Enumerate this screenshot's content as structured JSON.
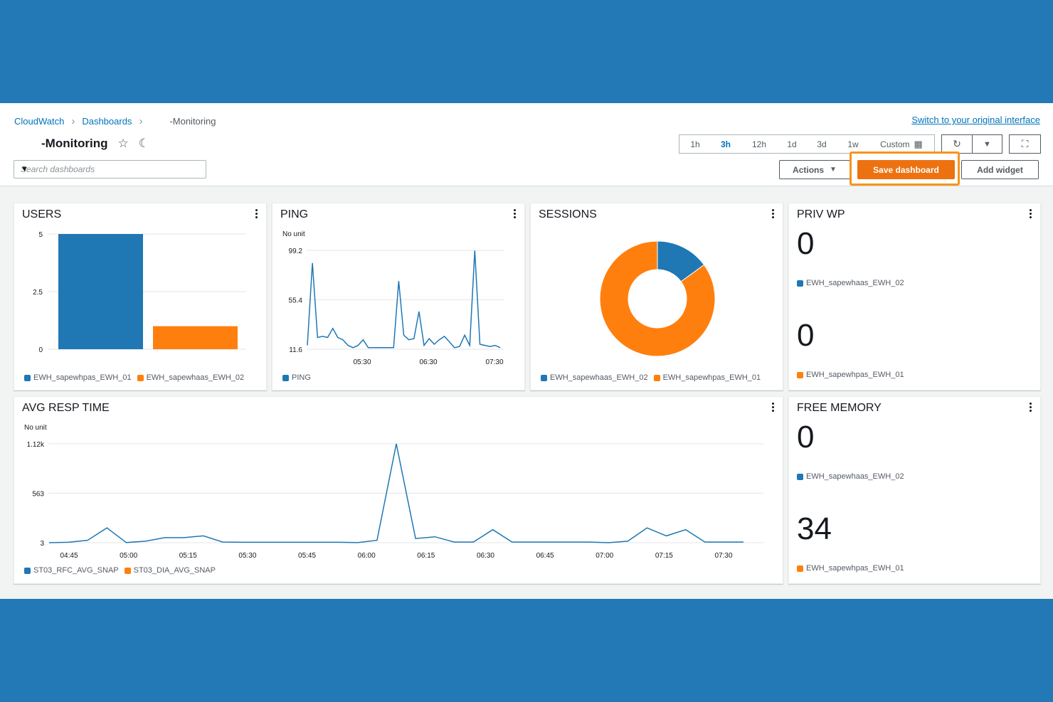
{
  "breadcrumb": {
    "cloudwatch": "CloudWatch",
    "dashboards": "Dashboards",
    "current": "-Monitoring"
  },
  "switch_link": "Switch to your original interface",
  "dashboard_title": "-Monitoring",
  "search": {
    "placeholder": "Search dashboards"
  },
  "time_ranges": [
    "1h",
    "3h",
    "12h",
    "1d",
    "3d",
    "1w"
  ],
  "time_active": "3h",
  "custom_label": "Custom",
  "buttons": {
    "actions": "Actions",
    "save": "Save dashboard",
    "add_widget": "Add widget"
  },
  "colors": {
    "blue": "#1f77b4",
    "orange": "#ff7f0e",
    "highlight": "#f7941d"
  },
  "widgets": {
    "users": {
      "title": "USERS",
      "legend": [
        "EWH_sapewhpas_EWH_01",
        "EWH_sapewhaas_EWH_02"
      ]
    },
    "ping": {
      "title": "PING",
      "unit": "No unit",
      "legend": [
        "PING"
      ]
    },
    "sessions": {
      "title": "SESSIONS",
      "legend": [
        "EWH_sapewhaas_EWH_02",
        "EWH_sapewhpas_EWH_01"
      ]
    },
    "privwp": {
      "title": "PRIV WP",
      "v1": "0",
      "l1": "EWH_sapewhaas_EWH_02",
      "v2": "0",
      "l2": "EWH_sapewhpas_EWH_01"
    },
    "avgresp": {
      "title": "AVG RESP TIME",
      "unit": "No unit",
      "legend": [
        "ST03_RFC_AVG_SNAP",
        "ST03_DIA_AVG_SNAP"
      ]
    },
    "freemem": {
      "title": "FREE MEMORY",
      "v1": "0",
      "l1": "EWH_sapewhaas_EWH_02",
      "v2": "34",
      "l2": "EWH_sapewhpas_EWH_01"
    }
  },
  "chart_data": [
    {
      "type": "bar",
      "title": "USERS",
      "categories": [
        "EWH_sapewhpas_EWH_01",
        "EWH_sapewhaas_EWH_02"
      ],
      "values": [
        5,
        1
      ],
      "yticks": [
        "5",
        "2.5",
        "0"
      ],
      "ylim": [
        0,
        5
      ]
    },
    {
      "type": "line",
      "title": "PING",
      "ylabel": "No unit",
      "yticks": [
        "99.2",
        "55.4",
        "11.6"
      ],
      "ylim": [
        11.6,
        99.2
      ],
      "xticks": [
        "05:30",
        "06:30",
        "07:30"
      ],
      "series": [
        {
          "name": "PING",
          "values": [
            15,
            88,
            22,
            23,
            22,
            30,
            22,
            20,
            15,
            13,
            15,
            20,
            13,
            13,
            13,
            13,
            13,
            13,
            72,
            24,
            20,
            21,
            45,
            15,
            21,
            16,
            20,
            23,
            18,
            13,
            14,
            24,
            15,
            99,
            16,
            15,
            14,
            15,
            13
          ]
        }
      ]
    },
    {
      "type": "pie",
      "title": "SESSIONS",
      "labels": [
        "EWH_sapewhaas_EWH_02",
        "EWH_sapewhpas_EWH_01"
      ],
      "values": [
        15,
        85
      ]
    },
    {
      "type": "table",
      "title": "PRIV WP",
      "rows": [
        [
          "EWH_sapewhaas_EWH_02",
          "0"
        ],
        [
          "EWH_sapewhpas_EWH_01",
          "0"
        ]
      ]
    },
    {
      "type": "line",
      "title": "AVG RESP TIME",
      "ylabel": "No unit",
      "yticks": [
        "1.12k",
        "563",
        "3"
      ],
      "ylim": [
        3,
        1120
      ],
      "xticks": [
        "04:45",
        "05:00",
        "05:15",
        "05:30",
        "05:45",
        "06:00",
        "06:15",
        "06:30",
        "06:45",
        "07:00",
        "07:15",
        "07:30"
      ],
      "series": [
        {
          "name": "ST03_RFC_AVG_SNAP",
          "values": [
            3,
            8,
            30,
            170,
            5,
            20,
            60,
            60,
            80,
            10,
            8,
            8,
            8,
            8,
            8,
            8,
            4,
            30,
            1120,
            50,
            70,
            10,
            10,
            150,
            10,
            10,
            10,
            10,
            10,
            3,
            20,
            170,
            80,
            150,
            10,
            10,
            10
          ]
        },
        {
          "name": "ST03_DIA_AVG_SNAP",
          "values": []
        }
      ]
    },
    {
      "type": "table",
      "title": "FREE MEMORY",
      "rows": [
        [
          "EWH_sapewhaas_EWH_02",
          "0"
        ],
        [
          "EWH_sapewhpas_EWH_01",
          "34"
        ]
      ]
    }
  ]
}
